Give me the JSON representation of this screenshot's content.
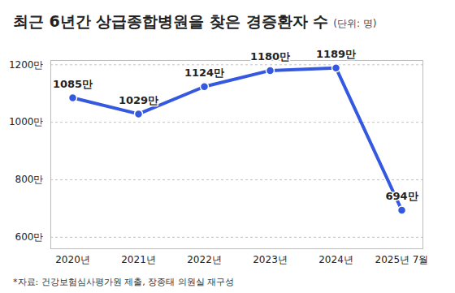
{
  "chart_data": {
    "type": "line",
    "title": "최근 6년간 상급종합병원을 찾은 경증환자 수",
    "subtitle": "(단위: 명)",
    "caption": "*자료: 건강보험심사평가원 제출, 장종태 의원실 재구성",
    "categories": [
      "2020년",
      "2021년",
      "2022년",
      "2023년",
      "2024년",
      "2025년 7월"
    ],
    "values": [
      1085,
      1029,
      1124,
      1180,
      1189,
      694
    ],
    "value_labels": [
      "1085만",
      "1029만",
      "1124만",
      "1180만",
      "1189만",
      "694만"
    ],
    "color": "#3558e0",
    "marker": "circle",
    "line_style": "solid",
    "data_labels": true,
    "grid": true,
    "ylim": [
      560,
      1215
    ],
    "yticks": [
      {
        "value": 600,
        "label": "600만"
      },
      {
        "value": 800,
        "label": "800만"
      },
      {
        "value": 1000,
        "label": "1000만"
      },
      {
        "value": 1200,
        "label": "1200만"
      }
    ]
  }
}
